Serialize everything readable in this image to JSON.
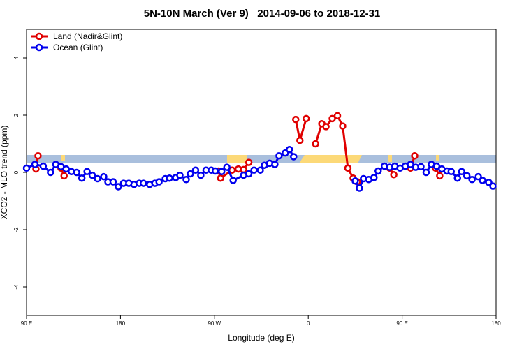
{
  "chart_data": {
    "type": "line",
    "title": "5N-10N March (Ver 9)   2014-09-06 to 2018-12-31",
    "x_label": "Longitude (deg E)",
    "y_label": "XCO2 - MLO trend (ppm)",
    "xlim": [
      90,
      540
    ],
    "xticks": [
      {
        "value": 90,
        "label": "90 E"
      },
      {
        "value": 180,
        "label": "180"
      },
      {
        "value": 270,
        "label": "90 W"
      },
      {
        "value": 360,
        "label": "0"
      },
      {
        "value": 450,
        "label": "90 E"
      },
      {
        "value": 540,
        "label": "180"
      }
    ],
    "ylim": [
      -5,
      5
    ],
    "yticks": [
      -4,
      -2,
      0,
      2,
      4
    ],
    "legend": "topleft",
    "series": [
      {
        "name": "Land (Nadir&Glint)",
        "color": "#e00000",
        "x": [
          99,
          101,
          null,
          123,
          126,
          null,
          274,
          276,
          287,
          293,
          298,
          303,
          null,
          348,
          352,
          358,
          null,
          367,
          373,
          377,
          383,
          388,
          393,
          398,
          403,
          407,
          null,
          438,
          442,
          null,
          458,
          462,
          null,
          482,
          486
        ],
        "values": [
          0.12,
          0.58,
          null,
          0.15,
          -0.12,
          null,
          0.05,
          -0.2,
          0.08,
          0.12,
          0.1,
          0.35,
          null,
          1.85,
          1.12,
          1.88,
          null,
          1.0,
          1.7,
          1.6,
          1.88,
          1.98,
          1.62,
          0.15,
          -0.2,
          -0.33,
          null,
          0.15,
          -0.08,
          null,
          0.15,
          0.58,
          null,
          0.15,
          -0.12
        ]
      },
      {
        "name": "Ocean (Glint)",
        "color": "#0000ee",
        "x": [
          90,
          98,
          106,
          113,
          118,
          123,
          128,
          133,
          138,
          143,
          148,
          153,
          158,
          164,
          168,
          173,
          178,
          183,
          188,
          193,
          198,
          202,
          208,
          213,
          217,
          223,
          227,
          233,
          237,
          243,
          247,
          252,
          257,
          262,
          267,
          271,
          277,
          282,
          288,
          298,
          303,
          308,
          314,
          318,
          323,
          328,
          332,
          338,
          342,
          346,
          null,
          405,
          409,
          413,
          418,
          423,
          427,
          433,
          438,
          443,
          448,
          453,
          458,
          463,
          468,
          473,
          478,
          483,
          488,
          493,
          497,
          503,
          507,
          512,
          517,
          523,
          527,
          533,
          537
        ],
        "values": [
          0.15,
          0.28,
          0.22,
          0.0,
          0.28,
          0.2,
          0.12,
          0.03,
          0.0,
          -0.2,
          0.03,
          -0.1,
          -0.22,
          -0.15,
          -0.33,
          -0.33,
          -0.5,
          -0.38,
          -0.38,
          -0.42,
          -0.38,
          -0.38,
          -0.42,
          -0.38,
          -0.33,
          -0.22,
          -0.2,
          -0.18,
          -0.1,
          -0.25,
          -0.05,
          0.08,
          -0.1,
          0.08,
          0.08,
          0.05,
          0.03,
          0.18,
          -0.28,
          -0.1,
          -0.05,
          0.08,
          0.08,
          0.25,
          0.32,
          0.28,
          0.58,
          0.68,
          0.8,
          0.55,
          null,
          -0.3,
          -0.55,
          -0.22,
          -0.25,
          -0.18,
          0.05,
          0.22,
          0.18,
          0.22,
          0.15,
          0.22,
          0.28,
          0.18,
          0.2,
          0.0,
          0.28,
          0.22,
          0.12,
          0.05,
          0.03,
          -0.2,
          0.03,
          -0.12,
          -0.25,
          -0.15,
          -0.28,
          -0.35,
          -0.48
        ]
      }
    ]
  }
}
